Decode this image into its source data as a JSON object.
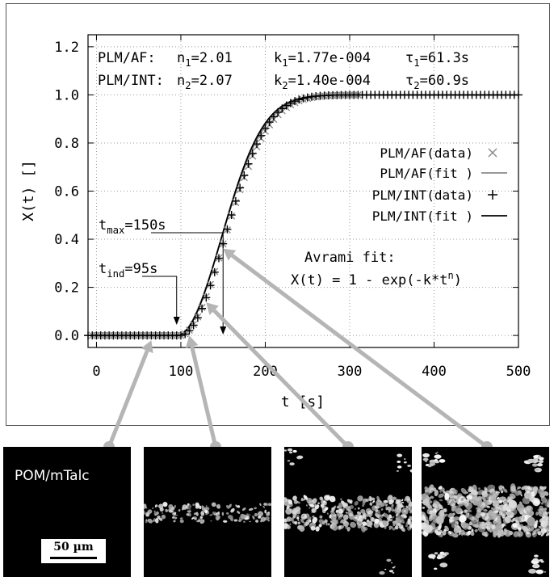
{
  "chart_data": {
    "type": "scatter",
    "xlabel": "t [s]",
    "ylabel": "X(t) []",
    "xlim": [
      -10,
      500
    ],
    "ylim": [
      -0.05,
      1.25
    ],
    "xticks": [
      "0",
      "100",
      "200",
      "300",
      "400",
      "500"
    ],
    "yticks": [
      "0.0",
      "0.2",
      "0.4",
      "0.6",
      "0.8",
      "1.0",
      "1.2"
    ],
    "grid": true,
    "legend_position": "right",
    "fit_params": [
      {
        "sample": "PLM/AF:",
        "n_sym": "n",
        "n_sub": "1",
        "n_val": "=2.01",
        "k_sym": "k",
        "k_sub": "1",
        "k_val": "=1.77e-004",
        "tau_sym": "τ",
        "tau_sub": "1",
        "tau_val": "=61.3s"
      },
      {
        "sample": "PLM/INT:",
        "n_sym": "n",
        "n_sub": "2",
        "n_val": "=2.07",
        "k_sym": "k",
        "k_sub": "2",
        "k_val": "=1.40e-004",
        "tau_sym": "τ",
        "tau_sub": "2",
        "tau_val": "=60.9s"
      }
    ],
    "series": [
      {
        "name": "PLM/AF(data)",
        "marker": "x",
        "color": "#8a8a8a",
        "t_ind": 95,
        "n": 2.01,
        "k": 0.000177,
        "x_start": -5,
        "x_end": 310,
        "step": 5
      },
      {
        "name": "PLM/AF(fit )",
        "style": "line",
        "color": "#8a8a8a",
        "t_ind": 95,
        "n": 2.01,
        "k": 0.000177
      },
      {
        "name": "PLM/INT(data)",
        "marker": "+",
        "color": "#000000",
        "t_ind": 95,
        "n": 2.07,
        "k": 0.00014,
        "x_start": -10,
        "x_end": 500,
        "step": 5
      },
      {
        "name": "PLM/INT(fit )",
        "style": "line",
        "color": "#000000",
        "t_ind": 95,
        "n": 2.07,
        "k": 0.00014
      }
    ],
    "annotations": {
      "t_max": {
        "sym": "t",
        "sub": "max",
        "val": "=150s",
        "x": 150
      },
      "t_ind": {
        "sym": "t",
        "sub": "ind",
        "val": "=95s",
        "x": 95
      },
      "avrami_title": "Avrami fit:",
      "avrami_formula_pre": "X(t) = 1 - exp(-k*t",
      "avrami_formula_sup": "n",
      "avrami_formula_post": ")"
    }
  },
  "micrographs": [
    {
      "label": "POM/mTalc",
      "scale_label": "50 µm",
      "t": 65
    },
    {
      "label": "",
      "t": 110
    },
    {
      "label": "",
      "t": 130
    },
    {
      "label": "",
      "t": 150
    }
  ],
  "colors": {
    "arrow": "#b5b5b5",
    "axis": "#000000",
    "grid": "#9a9a9a"
  }
}
